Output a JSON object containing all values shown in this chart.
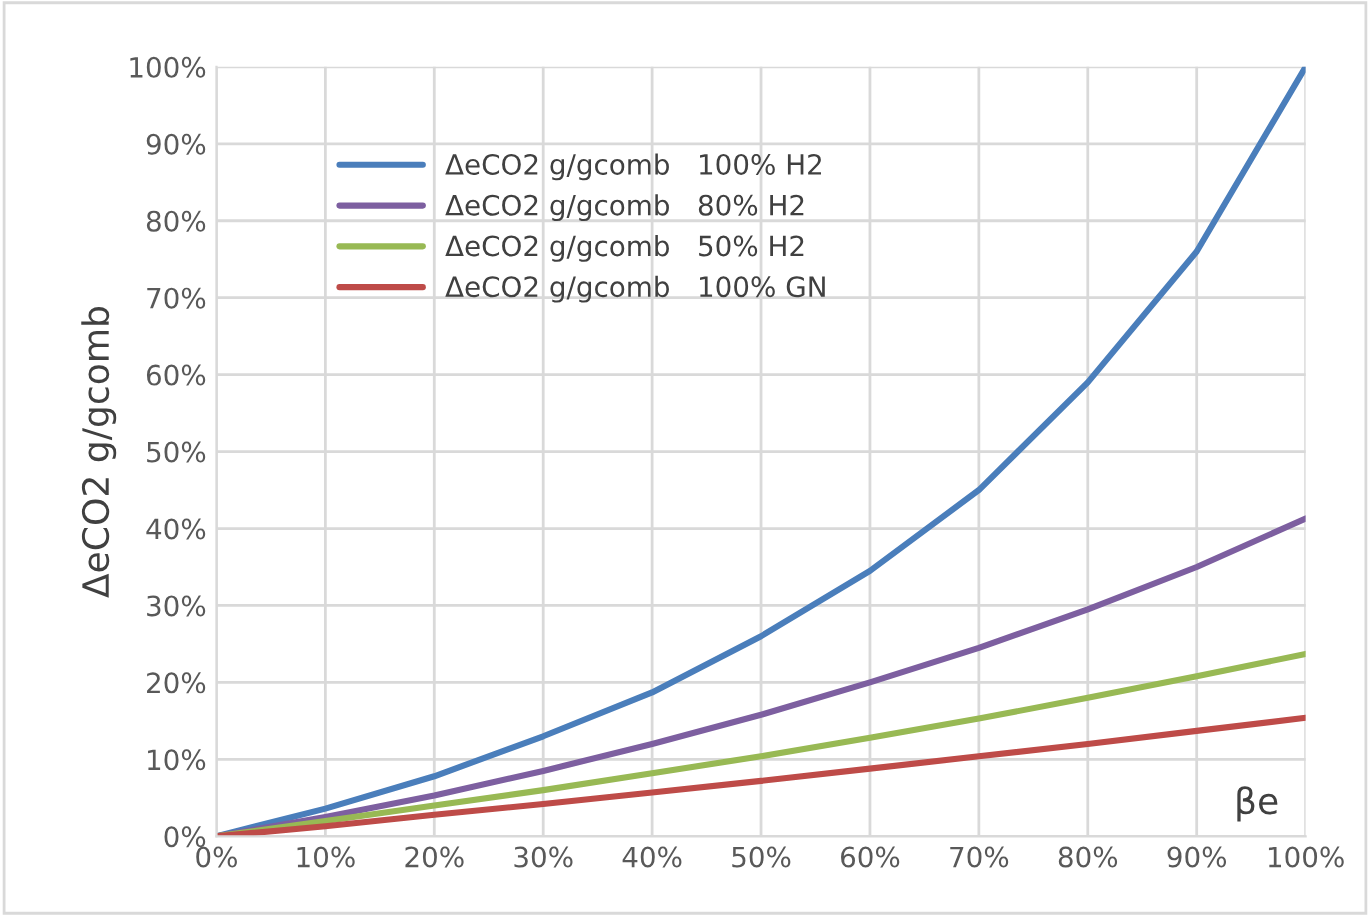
{
  "chart_data": {
    "type": "line",
    "xlabel": "βe",
    "ylabel": "ΔeCO2 g/gcomb",
    "x": [
      0,
      10,
      20,
      30,
      40,
      50,
      60,
      70,
      80,
      90,
      100
    ],
    "series": [
      {
        "name": "ΔeCO2 g/gcomb   100% H2",
        "color": "#4a7ebb",
        "values": [
          0,
          3.6,
          7.8,
          13,
          18.7,
          26,
          34.5,
          45,
          59,
          76,
          100
        ]
      },
      {
        "name": "ΔeCO2 g/gcomb   80% H2",
        "color": "#7d5fa0",
        "values": [
          0,
          2.5,
          5.3,
          8.5,
          12,
          15.8,
          20,
          24.5,
          29.5,
          35,
          41.3
        ]
      },
      {
        "name": "ΔeCO2 g/gcomb   50% H2",
        "color": "#98b954",
        "values": [
          0,
          2,
          4,
          6,
          8.2,
          10.4,
          12.8,
          15.3,
          18,
          20.8,
          23.7
        ]
      },
      {
        "name": "ΔeCO2 g/gcomb   100% GN",
        "color": "#be4b48",
        "values": [
          0,
          1.3,
          2.8,
          4.2,
          5.7,
          7.2,
          8.8,
          10.4,
          12,
          13.7,
          15.4
        ]
      }
    ],
    "xlim": [
      0,
      100
    ],
    "ylim": [
      0,
      100
    ],
    "xticks": [
      {
        "value": 0,
        "label": "0%"
      },
      {
        "value": 10,
        "label": "10%"
      },
      {
        "value": 20,
        "label": "20%"
      },
      {
        "value": 30,
        "label": "30%"
      },
      {
        "value": 40,
        "label": "40%"
      },
      {
        "value": 50,
        "label": "50%"
      },
      {
        "value": 60,
        "label": "60%"
      },
      {
        "value": 70,
        "label": "70%"
      },
      {
        "value": 80,
        "label": "80%"
      },
      {
        "value": 90,
        "label": "90%"
      },
      {
        "value": 100,
        "label": "100%"
      }
    ],
    "yticks": [
      {
        "value": 0,
        "label": "0%"
      },
      {
        "value": 10,
        "label": "10%"
      },
      {
        "value": 20,
        "label": "20%"
      },
      {
        "value": 30,
        "label": "30%"
      },
      {
        "value": 40,
        "label": "40%"
      },
      {
        "value": 50,
        "label": "50%"
      },
      {
        "value": 60,
        "label": "60%"
      },
      {
        "value": 70,
        "label": "70%"
      },
      {
        "value": 80,
        "label": "80%"
      },
      {
        "value": 90,
        "label": "90%"
      },
      {
        "value": 100,
        "label": "100%"
      }
    ],
    "grid": true,
    "legend": "top left",
    "marker": "none",
    "line_style": "solid"
  }
}
